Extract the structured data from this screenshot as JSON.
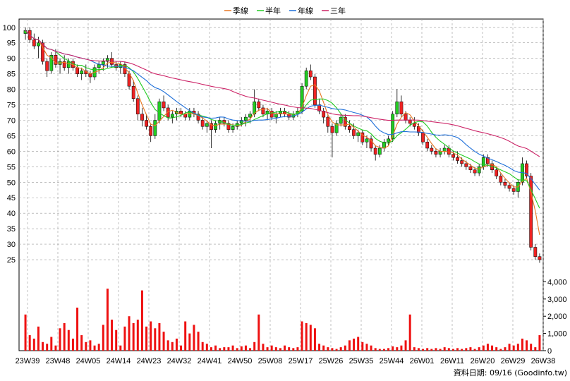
{
  "chart_data": {
    "type": "line",
    "legend": {
      "placement": "top-center",
      "items": [
        {
          "name": "季線",
          "color": "#e87722"
        },
        {
          "name": "半年",
          "color": "#22cc22"
        },
        {
          "name": "年線",
          "color": "#1e6fd9"
        },
        {
          "name": "三年",
          "color": "#cc2266"
        }
      ]
    },
    "x_tick_labels": [
      "23W39",
      "23W48",
      "24W05",
      "24W14",
      "24W23",
      "24W32",
      "24W41",
      "24W50",
      "25W08",
      "25W17",
      "25W26",
      "25W35",
      "25W44",
      "26W01",
      "26W11",
      "26W20",
      "26W29",
      "26W38"
    ],
    "price_axis": {
      "min": 20,
      "max": 102,
      "ticks": [
        25,
        30,
        35,
        40,
        45,
        50,
        55,
        60,
        65,
        70,
        75,
        80,
        85,
        90,
        95,
        100
      ]
    },
    "volume_axis": {
      "min": 0,
      "max": 5000,
      "tick_labels": [
        "0",
        "1,000",
        "2,000",
        "3,000",
        "4,000"
      ],
      "tick_values": [
        0,
        1000,
        2000,
        3000,
        4000
      ]
    },
    "grid": true,
    "up_color": "#22cc22",
    "down_color": "#ee2222",
    "volume_color": "#ee1111",
    "candles": [
      [
        98,
        100,
        96,
        99
      ],
      [
        99,
        100,
        95,
        96
      ],
      [
        96,
        98,
        93,
        94
      ],
      [
        94,
        97,
        90,
        95
      ],
      [
        95,
        96,
        88,
        89
      ],
      [
        89,
        90,
        84,
        86
      ],
      [
        86,
        92,
        85,
        91
      ],
      [
        91,
        93,
        87,
        88
      ],
      [
        88,
        90,
        85,
        89
      ],
      [
        89,
        91,
        86,
        87
      ],
      [
        87,
        90,
        85,
        89
      ],
      [
        89,
        90,
        86,
        87
      ],
      [
        87,
        88,
        84,
        85
      ],
      [
        85,
        87,
        83,
        86
      ],
      [
        86,
        88,
        84,
        85
      ],
      [
        85,
        86,
        82,
        84
      ],
      [
        84,
        88,
        83,
        87
      ],
      [
        87,
        89,
        85,
        88
      ],
      [
        88,
        90,
        86,
        89
      ],
      [
        89,
        91,
        87,
        90
      ],
      [
        90,
        92,
        87,
        88
      ],
      [
        88,
        89,
        86,
        87
      ],
      [
        87,
        89,
        85,
        88
      ],
      [
        88,
        89,
        84,
        85
      ],
      [
        85,
        86,
        80,
        81
      ],
      [
        81,
        83,
        76,
        77
      ],
      [
        77,
        78,
        70,
        72
      ],
      [
        72,
        74,
        68,
        70
      ],
      [
        70,
        72,
        67,
        68
      ],
      [
        68,
        69,
        63,
        65
      ],
      [
        65,
        72,
        64,
        70
      ],
      [
        70,
        77,
        69,
        76
      ],
      [
        76,
        78,
        73,
        74
      ],
      [
        74,
        75,
        70,
        71
      ],
      [
        71,
        73,
        69,
        72
      ],
      [
        72,
        74,
        70,
        73
      ],
      [
        73,
        74,
        71,
        72
      ],
      [
        72,
        73,
        70,
        71
      ],
      [
        71,
        74,
        70,
        73
      ],
      [
        73,
        74,
        71,
        72
      ],
      [
        72,
        73,
        69,
        70
      ],
      [
        70,
        71,
        67,
        68
      ],
      [
        68,
        70,
        66,
        69
      ],
      [
        69,
        70,
        61,
        67
      ],
      [
        67,
        70,
        66,
        69
      ],
      [
        69,
        71,
        67,
        70
      ],
      [
        70,
        71,
        68,
        69
      ],
      [
        69,
        70,
        66,
        67
      ],
      [
        67,
        69,
        66,
        68
      ],
      [
        68,
        70,
        67,
        69
      ],
      [
        69,
        71,
        68,
        70
      ],
      [
        70,
        72,
        68,
        71
      ],
      [
        71,
        73,
        69,
        72
      ],
      [
        72,
        80,
        71,
        76
      ],
      [
        76,
        77,
        73,
        74
      ],
      [
        74,
        75,
        71,
        72
      ],
      [
        72,
        74,
        70,
        73
      ],
      [
        73,
        74,
        70,
        71
      ],
      [
        71,
        73,
        69,
        72
      ],
      [
        72,
        74,
        71,
        73
      ],
      [
        73,
        74,
        71,
        72
      ],
      [
        72,
        73,
        70,
        71
      ],
      [
        71,
        73,
        70,
        72
      ],
      [
        72,
        74,
        71,
        73
      ],
      [
        73,
        82,
        72,
        81
      ],
      [
        81,
        87,
        80,
        86
      ],
      [
        86,
        88,
        83,
        84
      ],
      [
        84,
        85,
        74,
        75
      ],
      [
        75,
        77,
        72,
        73
      ],
      [
        73,
        74,
        69,
        71
      ],
      [
        71,
        72,
        66,
        68
      ],
      [
        68,
        69,
        58,
        66
      ],
      [
        66,
        70,
        65,
        69
      ],
      [
        69,
        72,
        68,
        71
      ],
      [
        71,
        72,
        67,
        68
      ],
      [
        68,
        70,
        66,
        67
      ],
      [
        67,
        69,
        64,
        65
      ],
      [
        65,
        67,
        63,
        66
      ],
      [
        66,
        67,
        62,
        63
      ],
      [
        63,
        65,
        61,
        64
      ],
      [
        64,
        65,
        60,
        61
      ],
      [
        61,
        62,
        57,
        59
      ],
      [
        59,
        62,
        58,
        61
      ],
      [
        61,
        64,
        60,
        63
      ],
      [
        63,
        65,
        62,
        64
      ],
      [
        64,
        73,
        63,
        72
      ],
      [
        72,
        80,
        71,
        76
      ],
      [
        76,
        78,
        71,
        72
      ],
      [
        72,
        73,
        69,
        70
      ],
      [
        70,
        71,
        68,
        69
      ],
      [
        69,
        71,
        67,
        68
      ],
      [
        68,
        69,
        65,
        66
      ],
      [
        66,
        67,
        62,
        63
      ],
      [
        63,
        64,
        60,
        61
      ],
      [
        61,
        62,
        59,
        60
      ],
      [
        60,
        61,
        58,
        59
      ],
      [
        59,
        61,
        58,
        60
      ],
      [
        60,
        62,
        59,
        61
      ],
      [
        61,
        62,
        58,
        59
      ],
      [
        59,
        60,
        57,
        58
      ],
      [
        58,
        60,
        56,
        57
      ],
      [
        57,
        58,
        55,
        56
      ],
      [
        56,
        57,
        54,
        55
      ],
      [
        55,
        56,
        53,
        54
      ],
      [
        54,
        55,
        52,
        53
      ],
      [
        53,
        56,
        52,
        55
      ],
      [
        55,
        59,
        54,
        58
      ],
      [
        58,
        59,
        55,
        56
      ],
      [
        56,
        57,
        53,
        54
      ],
      [
        54,
        55,
        51,
        52
      ],
      [
        52,
        53,
        49,
        50
      ],
      [
        50,
        51,
        48,
        49
      ],
      [
        49,
        50,
        47,
        48
      ],
      [
        48,
        49,
        46,
        47
      ],
      [
        47,
        51,
        45,
        50
      ],
      [
        50,
        58,
        49,
        56
      ],
      [
        56,
        57,
        51,
        52
      ],
      [
        52,
        53,
        28,
        29
      ],
      [
        29,
        30,
        25,
        26
      ],
      [
        26,
        27,
        24,
        25
      ]
    ],
    "volumes": [
      2100,
      900,
      700,
      1400,
      500,
      400,
      800,
      300,
      1300,
      1600,
      1200,
      700,
      2500,
      900,
      500,
      600,
      300,
      400,
      1500,
      3600,
      1800,
      1200,
      300,
      1400,
      2000,
      1600,
      1800,
      3500,
      1400,
      1700,
      1300,
      1600,
      1100,
      600,
      500,
      700,
      300,
      1700,
      1000,
      1500,
      1100,
      500,
      400,
      200,
      300,
      150,
      200,
      200,
      300,
      150,
      250,
      300,
      150,
      500,
      2100,
      400,
      200,
      300,
      200,
      150,
      300,
      200,
      150,
      200,
      1700,
      1600,
      1500,
      1300,
      400,
      300,
      200,
      150,
      100,
      200,
      300,
      600,
      700,
      800,
      500,
      400,
      300,
      150,
      100,
      100,
      150,
      250,
      200,
      300,
      600,
      2100,
      200,
      150,
      100,
      150,
      100,
      150,
      100,
      200,
      150,
      100,
      150,
      100,
      150,
      200,
      100,
      200,
      300,
      400,
      300,
      200,
      100,
      200,
      400,
      300,
      400,
      700,
      600,
      400,
      200,
      900
    ]
  }
}
